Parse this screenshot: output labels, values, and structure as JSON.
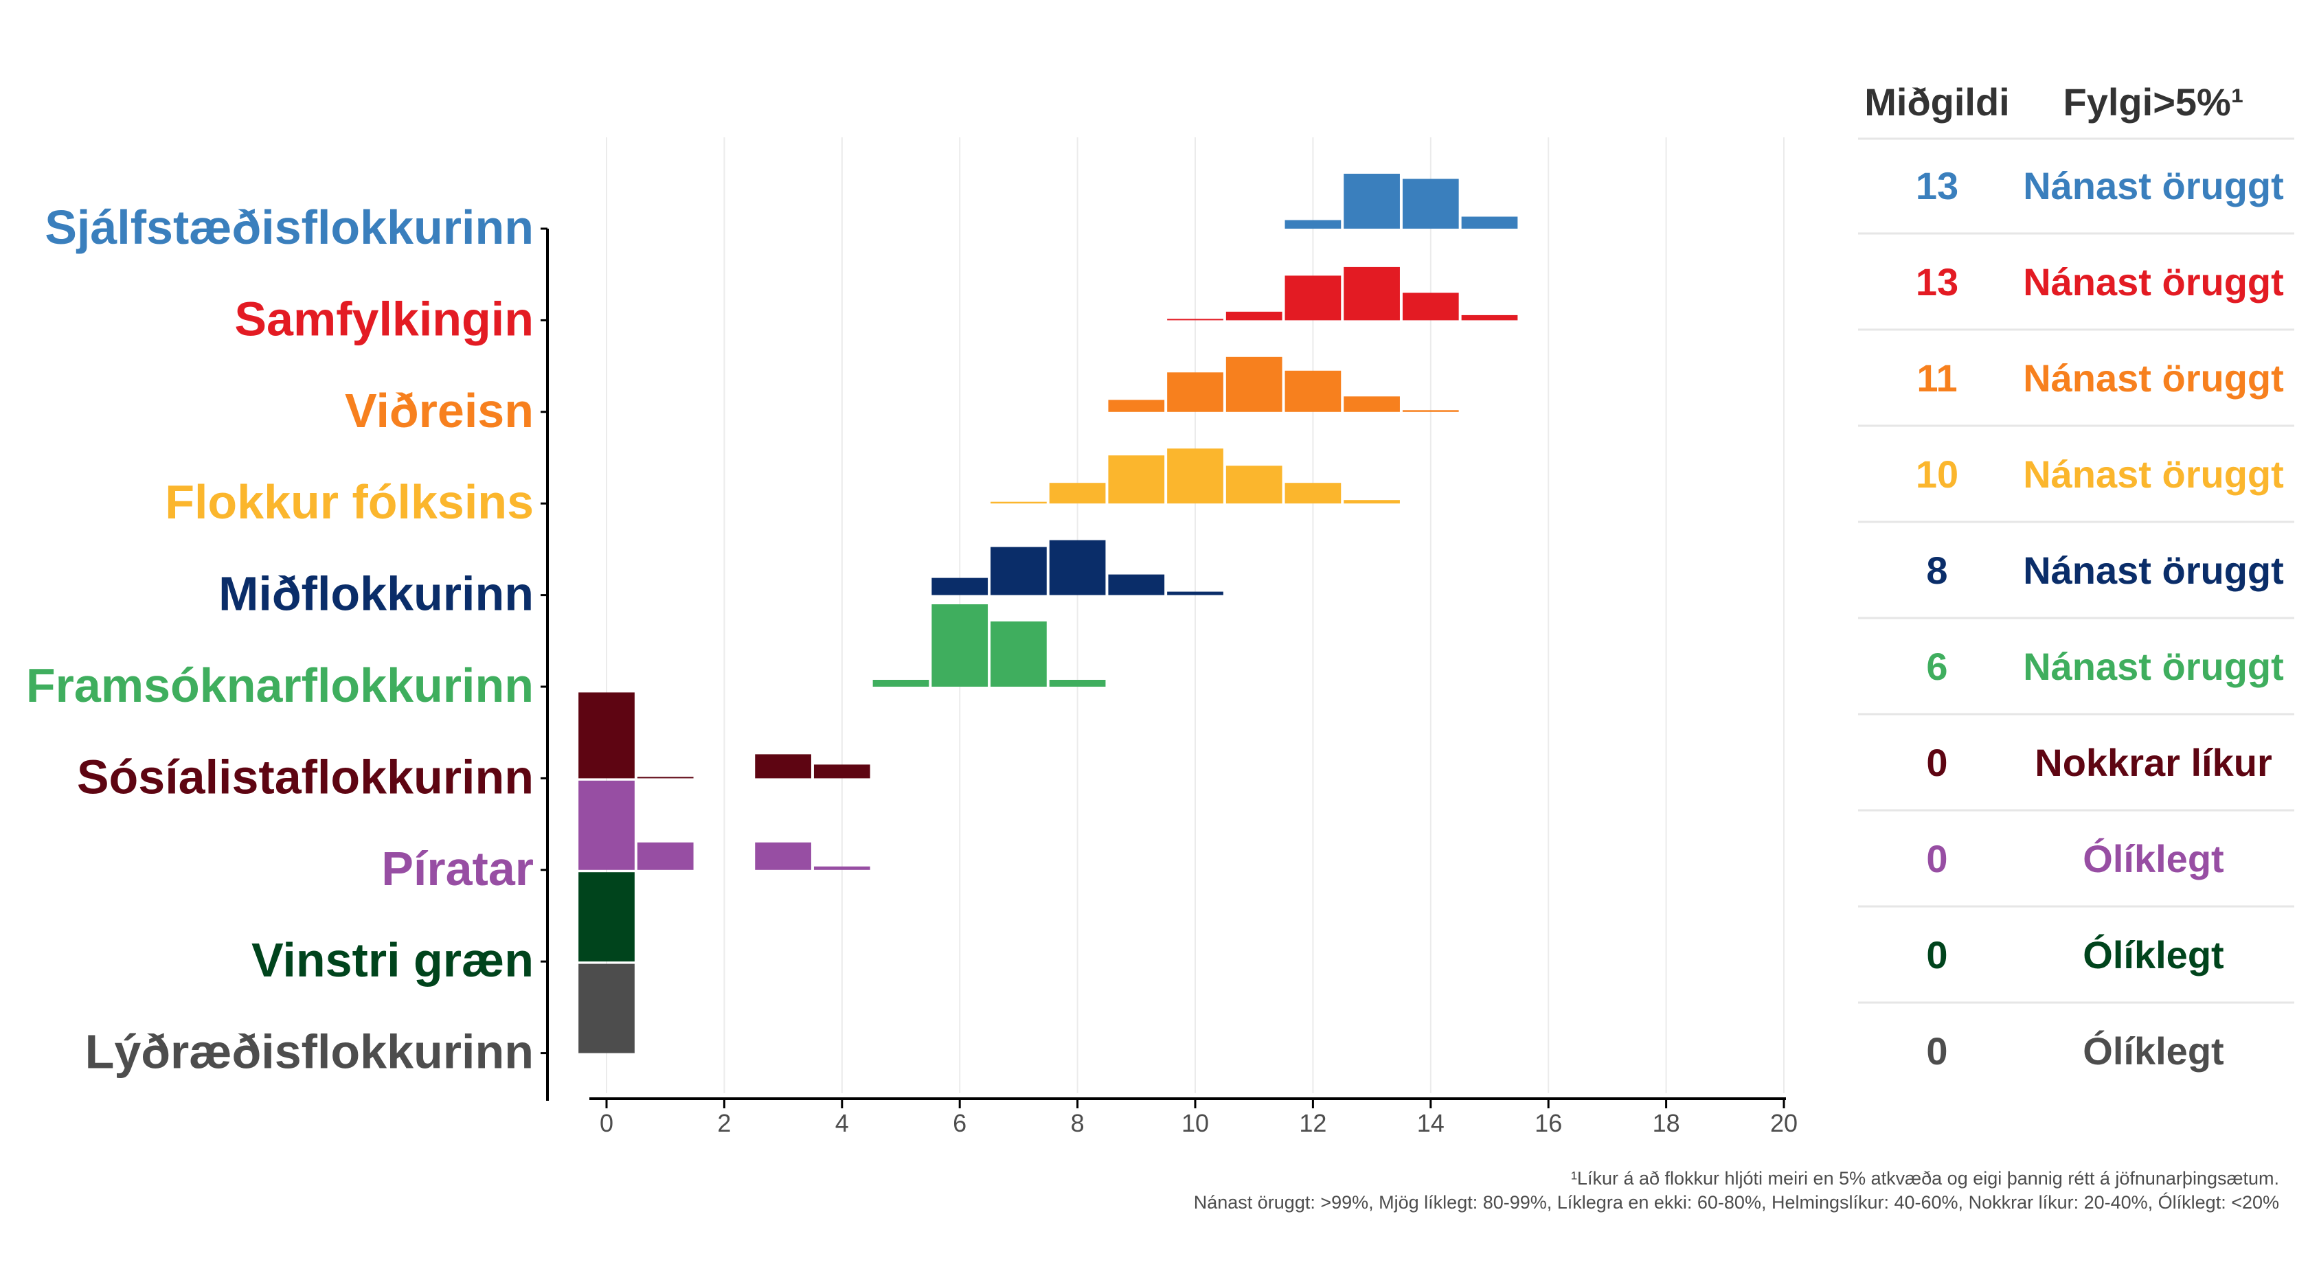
{
  "chart_data": {
    "type": "bar",
    "xlim": [
      0,
      20
    ],
    "x_ticks": [
      "0",
      "2",
      "4",
      "6",
      "8",
      "10",
      "12",
      "14",
      "16",
      "18",
      "20"
    ],
    "grid": true,
    "parties": [
      {
        "name": "Sjálfstæðisflokkurinn",
        "color": "#3a7fbd",
        "bars": [
          {
            "x": 12,
            "p": 0.05
          },
          {
            "x": 13,
            "p": 0.32
          },
          {
            "x": 14,
            "p": 0.29
          },
          {
            "x": 15,
            "p": 0.07
          }
        ],
        "median": "13",
        "status": "Nánast öruggt"
      },
      {
        "name": "Samfylkingin",
        "color": "#e31b23",
        "bars": [
          {
            "x": 10,
            "p": 0.005
          },
          {
            "x": 11,
            "p": 0.05
          },
          {
            "x": 12,
            "p": 0.26
          },
          {
            "x": 13,
            "p": 0.31
          },
          {
            "x": 14,
            "p": 0.16
          },
          {
            "x": 15,
            "p": 0.03
          }
        ],
        "median": "13",
        "status": "Nánast öruggt"
      },
      {
        "name": "Viðreisn",
        "color": "#f7801e",
        "bars": [
          {
            "x": 9,
            "p": 0.07
          },
          {
            "x": 10,
            "p": 0.23
          },
          {
            "x": 11,
            "p": 0.32
          },
          {
            "x": 12,
            "p": 0.24
          },
          {
            "x": 13,
            "p": 0.09
          },
          {
            "x": 14,
            "p": 0.01
          }
        ],
        "median": "11",
        "status": "Nánast öruggt"
      },
      {
        "name": "Flokkur fólksins",
        "color": "#fbb62d",
        "bars": [
          {
            "x": 7,
            "p": 0.01
          },
          {
            "x": 8,
            "p": 0.12
          },
          {
            "x": 9,
            "p": 0.28
          },
          {
            "x": 10,
            "p": 0.32
          },
          {
            "x": 11,
            "p": 0.22
          },
          {
            "x": 12,
            "p": 0.12
          },
          {
            "x": 13,
            "p": 0.02
          }
        ],
        "median": "10",
        "status": "Nánast öruggt"
      },
      {
        "name": "Miðflokkurinn",
        "color": "#0a2d69",
        "bars": [
          {
            "x": 6,
            "p": 0.1
          },
          {
            "x": 7,
            "p": 0.28
          },
          {
            "x": 8,
            "p": 0.32
          },
          {
            "x": 9,
            "p": 0.12
          },
          {
            "x": 10,
            "p": 0.02
          }
        ],
        "median": "8",
        "status": "Nánast öruggt"
      },
      {
        "name": "Framsóknarflokkurinn",
        "color": "#3fae5e",
        "bars": [
          {
            "x": 5,
            "p": 0.04
          },
          {
            "x": 6,
            "p": 0.48
          },
          {
            "x": 7,
            "p": 0.38
          },
          {
            "x": 8,
            "p": 0.04
          }
        ],
        "median": "6",
        "status": "Nánast öruggt"
      },
      {
        "name": "Sósíalistaflokkurinn",
        "color": "#5e0512",
        "bars": [
          {
            "x": 0,
            "p": 0.5
          },
          {
            "x": 1,
            "p": 0.005
          },
          {
            "x": 3,
            "p": 0.14
          },
          {
            "x": 4,
            "p": 0.08
          }
        ],
        "median": "0",
        "status": "Nokkrar líkur"
      },
      {
        "name": "Píratar",
        "color": "#974ea3",
        "bars": [
          {
            "x": 0,
            "p": 0.52
          },
          {
            "x": 1,
            "p": 0.16
          },
          {
            "x": 3,
            "p": 0.16
          },
          {
            "x": 4,
            "p": 0.02
          }
        ],
        "median": "0",
        "status": "Ólíklegt"
      },
      {
        "name": "Vinstri græn",
        "color": "#00441c",
        "bars": [
          {
            "x": 0,
            "p": 0.52
          }
        ],
        "median": "0",
        "status": "Ólíklegt"
      },
      {
        "name": "Lýðræðisflokkurinn",
        "color": "#4d4d4d",
        "bars": [
          {
            "x": 0,
            "p": 0.52
          }
        ],
        "median": "0",
        "status": "Ólíklegt"
      }
    ]
  },
  "table": {
    "header_median": "Miðgildi",
    "header_threshold": "Fylgi>5%¹"
  },
  "footnote": {
    "line1": "¹Líkur á að flokkur hljóti meiri en 5% atkvæða og eigi þannig rétt á jöfnunarþingsætum.",
    "line2": "Nánast öruggt: >99%, Mjög líklegt: 80-99%, Líklegra en ekki: 60-80%, Helmingslíkur: 40-60%, Nokkrar líkur: 20-40%, Ólíklegt: <20%"
  }
}
